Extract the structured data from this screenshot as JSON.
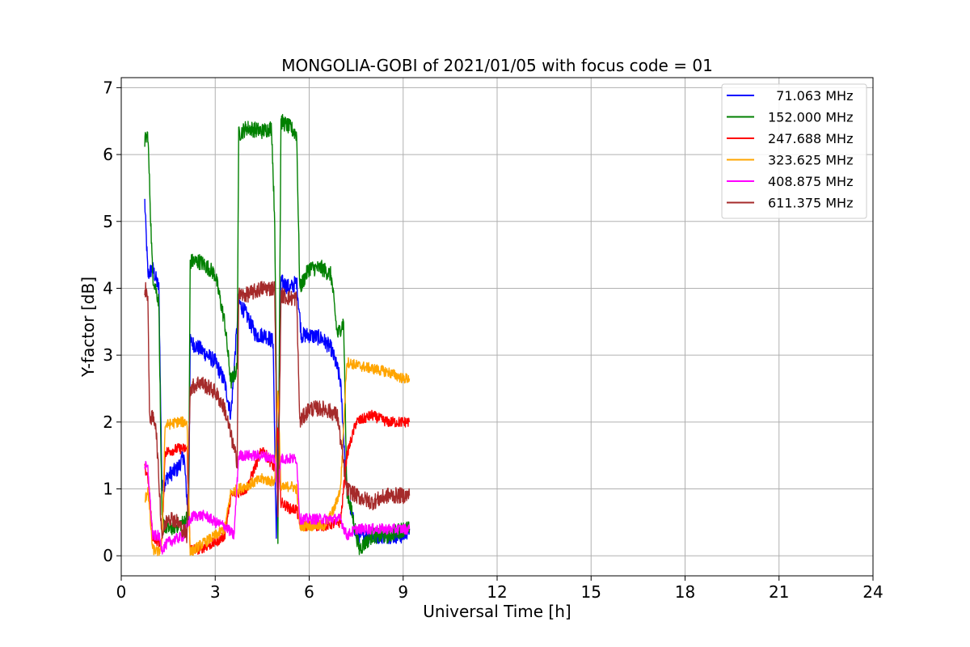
{
  "chart_data": {
    "type": "line",
    "title": "MONGOLIA-GOBI of 2021/01/05 with focus code = 01",
    "xlabel": "Universal Time [h]",
    "ylabel": "Y-factor [dB]",
    "xlim": [
      0,
      24
    ],
    "ylim": [
      -0.3,
      7.15
    ],
    "xticks": [
      0,
      3,
      6,
      9,
      12,
      15,
      18,
      21,
      24
    ],
    "yticks": [
      0,
      1,
      2,
      3,
      4,
      5,
      6,
      7
    ],
    "grid": true,
    "legend_position": "top-right",
    "noise_amplitude_note": "",
    "series": [
      {
        "name": "  71.063 MHz",
        "color": "#0000ff",
        "noise": 0.12,
        "points": [
          [
            0.75,
            5.3
          ],
          [
            0.85,
            4.2
          ],
          [
            1.0,
            4.3
          ],
          [
            1.2,
            4.0
          ],
          [
            1.3,
            1.0
          ],
          [
            1.5,
            1.2
          ],
          [
            1.8,
            1.3
          ],
          [
            2.0,
            1.5
          ],
          [
            2.15,
            0.5
          ],
          [
            2.2,
            3.2
          ],
          [
            2.5,
            3.1
          ],
          [
            3.0,
            2.9
          ],
          [
            3.3,
            2.6
          ],
          [
            3.5,
            2.1
          ],
          [
            3.75,
            3.8
          ],
          [
            4.0,
            3.6
          ],
          [
            4.3,
            3.3
          ],
          [
            4.6,
            3.3
          ],
          [
            4.85,
            3.2
          ],
          [
            4.95,
            0.2
          ],
          [
            5.1,
            4.1
          ],
          [
            5.4,
            4.0
          ],
          [
            5.6,
            4.1
          ],
          [
            5.75,
            3.3
          ],
          [
            6.0,
            3.3
          ],
          [
            6.4,
            3.25
          ],
          [
            6.7,
            3.1
          ],
          [
            6.9,
            2.8
          ],
          [
            7.0,
            2.6
          ],
          [
            7.2,
            1.0
          ],
          [
            7.5,
            0.3
          ],
          [
            8.0,
            0.3
          ],
          [
            8.5,
            0.3
          ],
          [
            9.0,
            0.3
          ],
          [
            9.2,
            0.4
          ]
        ]
      },
      {
        "name": "152.000 MHz",
        "color": "#008000",
        "noise": 0.12,
        "points": [
          [
            0.75,
            6.2
          ],
          [
            0.85,
            6.3
          ],
          [
            1.0,
            4.2
          ],
          [
            1.2,
            3.8
          ],
          [
            1.3,
            0.5
          ],
          [
            1.5,
            0.4
          ],
          [
            2.0,
            0.5
          ],
          [
            2.15,
            0.6
          ],
          [
            2.2,
            4.4
          ],
          [
            2.5,
            4.4
          ],
          [
            2.8,
            4.3
          ],
          [
            3.0,
            4.2
          ],
          [
            3.3,
            3.5
          ],
          [
            3.5,
            2.6
          ],
          [
            3.7,
            2.8
          ],
          [
            3.75,
            6.3
          ],
          [
            4.0,
            6.4
          ],
          [
            4.5,
            6.35
          ],
          [
            4.8,
            6.4
          ],
          [
            4.9,
            5.0
          ],
          [
            5.0,
            0.3
          ],
          [
            5.1,
            6.5
          ],
          [
            5.4,
            6.4
          ],
          [
            5.6,
            6.3
          ],
          [
            5.7,
            4.0
          ],
          [
            6.0,
            4.3
          ],
          [
            6.4,
            4.3
          ],
          [
            6.7,
            4.2
          ],
          [
            6.9,
            3.3
          ],
          [
            7.1,
            3.5
          ],
          [
            7.2,
            1.0
          ],
          [
            7.6,
            0.1
          ],
          [
            8.0,
            0.3
          ],
          [
            8.5,
            0.3
          ],
          [
            9.0,
            0.4
          ],
          [
            9.2,
            0.4
          ]
        ]
      },
      {
        "name": "247.688 MHz",
        "color": "#ff0000",
        "noise": 0.08,
        "points": [
          [
            0.75,
            1.3
          ],
          [
            0.85,
            1.2
          ],
          [
            1.0,
            0.3
          ],
          [
            1.2,
            0.2
          ],
          [
            1.3,
            0.2
          ],
          [
            1.4,
            1.55
          ],
          [
            1.8,
            1.6
          ],
          [
            2.1,
            1.6
          ],
          [
            2.2,
            0.1
          ],
          [
            2.5,
            0.1
          ],
          [
            3.0,
            0.2
          ],
          [
            3.3,
            0.3
          ],
          [
            3.5,
            0.9
          ],
          [
            4.0,
            1.0
          ],
          [
            4.5,
            1.6
          ],
          [
            4.9,
            1.3
          ],
          [
            5.0,
            1.9
          ],
          [
            5.1,
            0.8
          ],
          [
            5.4,
            0.7
          ],
          [
            5.6,
            0.7
          ],
          [
            5.7,
            0.45
          ],
          [
            6.0,
            0.45
          ],
          [
            6.5,
            0.45
          ],
          [
            7.0,
            0.5
          ],
          [
            7.2,
            1.5
          ],
          [
            7.5,
            2.0
          ],
          [
            8.0,
            2.1
          ],
          [
            8.5,
            2.0
          ],
          [
            9.0,
            2.0
          ],
          [
            9.2,
            2.0
          ]
        ]
      },
      {
        "name": "323.625 MHz",
        "color": "#ffa500",
        "noise": 0.08,
        "points": [
          [
            0.75,
            0.8
          ],
          [
            0.85,
            1.0
          ],
          [
            1.0,
            0.1
          ],
          [
            1.2,
            0.05
          ],
          [
            1.3,
            0.2
          ],
          [
            1.4,
            1.95
          ],
          [
            1.8,
            2.0
          ],
          [
            2.1,
            2.0
          ],
          [
            2.2,
            0.05
          ],
          [
            2.5,
            0.15
          ],
          [
            3.0,
            0.3
          ],
          [
            3.3,
            0.4
          ],
          [
            3.5,
            0.95
          ],
          [
            4.0,
            1.05
          ],
          [
            4.5,
            1.15
          ],
          [
            4.9,
            1.1
          ],
          [
            5.0,
            2.5
          ],
          [
            5.1,
            1.0
          ],
          [
            5.4,
            1.05
          ],
          [
            5.6,
            1.0
          ],
          [
            5.7,
            0.45
          ],
          [
            6.0,
            0.45
          ],
          [
            6.5,
            0.45
          ],
          [
            6.8,
            0.7
          ],
          [
            7.0,
            1.0
          ],
          [
            7.2,
            2.9
          ],
          [
            7.5,
            2.85
          ],
          [
            8.0,
            2.8
          ],
          [
            8.5,
            2.75
          ],
          [
            9.0,
            2.65
          ],
          [
            9.2,
            2.65
          ]
        ]
      },
      {
        "name": "408.875 MHz",
        "color": "#ff00ff",
        "noise": 0.08,
        "points": [
          [
            0.75,
            1.35
          ],
          [
            0.85,
            1.3
          ],
          [
            1.0,
            0.3
          ],
          [
            1.2,
            0.3
          ],
          [
            1.3,
            0.1
          ],
          [
            1.5,
            0.2
          ],
          [
            2.0,
            0.3
          ],
          [
            2.15,
            0.5
          ],
          [
            2.3,
            0.6
          ],
          [
            2.7,
            0.6
          ],
          [
            3.0,
            0.5
          ],
          [
            3.3,
            0.45
          ],
          [
            3.6,
            0.3
          ],
          [
            3.75,
            1.5
          ],
          [
            4.0,
            1.5
          ],
          [
            4.5,
            1.5
          ],
          [
            4.9,
            1.45
          ],
          [
            5.0,
            0.9
          ],
          [
            5.1,
            1.45
          ],
          [
            5.4,
            1.45
          ],
          [
            5.6,
            1.45
          ],
          [
            5.7,
            0.55
          ],
          [
            6.0,
            0.55
          ],
          [
            6.5,
            0.55
          ],
          [
            7.0,
            0.55
          ],
          [
            7.2,
            0.3
          ],
          [
            7.5,
            0.4
          ],
          [
            8.0,
            0.4
          ],
          [
            8.5,
            0.4
          ],
          [
            9.2,
            0.4
          ]
        ]
      },
      {
        "name": "611.375 MHz",
        "color": "#a52a2a",
        "noise": 0.12,
        "points": [
          [
            0.75,
            4.0
          ],
          [
            0.85,
            3.9
          ],
          [
            0.9,
            2.1
          ],
          [
            1.1,
            2.0
          ],
          [
            1.3,
            0.3
          ],
          [
            1.5,
            0.6
          ],
          [
            1.8,
            0.5
          ],
          [
            2.1,
            0.3
          ],
          [
            2.2,
            2.5
          ],
          [
            2.5,
            2.6
          ],
          [
            3.0,
            2.45
          ],
          [
            3.3,
            2.2
          ],
          [
            3.5,
            1.8
          ],
          [
            3.7,
            1.4
          ],
          [
            3.75,
            3.9
          ],
          [
            4.0,
            3.9
          ],
          [
            4.5,
            4.0
          ],
          [
            4.9,
            4.0
          ],
          [
            5.0,
            0.5
          ],
          [
            5.1,
            3.9
          ],
          [
            5.4,
            3.85
          ],
          [
            5.6,
            3.85
          ],
          [
            5.7,
            2.0
          ],
          [
            6.0,
            2.2
          ],
          [
            6.5,
            2.2
          ],
          [
            6.9,
            2.1
          ],
          [
            7.2,
            1.0
          ],
          [
            7.5,
            0.9
          ],
          [
            8.0,
            0.8
          ],
          [
            8.5,
            0.9
          ],
          [
            9.0,
            0.9
          ],
          [
            9.2,
            0.9
          ]
        ]
      }
    ]
  }
}
